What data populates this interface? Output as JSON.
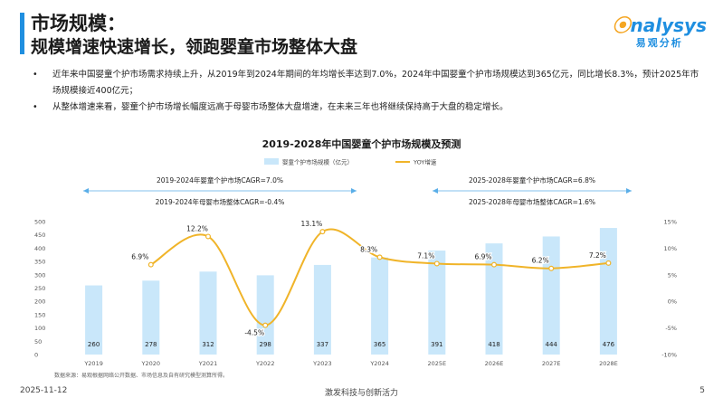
{
  "header": {
    "title_line1": "市场规模：",
    "title_line2": "规模增速快速增长，领跑婴童市场整体大盘",
    "logo_en": "nalysys",
    "logo_cn": "易观分析"
  },
  "bullets": [
    "近年来中国婴童个护市场需求持续上升，从2019年到2024年期间的年均增长率达到7.0%，2024年中国婴童个护市场规模达到365亿元，同比增长8.3%，预计2025年市场规模接近400亿元；",
    "从整体增速来看，婴童个护市场增长幅度远高于母婴市场整体大盘增速，在未来三年也将继续保持高于大盘的稳定增长。"
  ],
  "chart_data": {
    "type": "bar",
    "title": "2019-2028年中国婴童个护市场规模及预测",
    "categories": [
      "Y2019",
      "Y2020",
      "Y2021",
      "Y2022",
      "Y2023",
      "Y2024",
      "2025E",
      "2026E",
      "2027E",
      "2028E"
    ],
    "series": [
      {
        "name": "婴童个护市场规模（亿元）",
        "type": "bar",
        "axis": "left",
        "values": [
          260,
          278,
          312,
          298,
          337,
          365,
          391,
          418,
          444,
          476
        ],
        "labels": [
          "260",
          "278",
          "312",
          "298",
          "337",
          "365",
          "391",
          "418",
          "444",
          "476"
        ]
      },
      {
        "name": "YOY增速",
        "type": "line",
        "axis": "right",
        "values": [
          null,
          6.9,
          12.2,
          -4.5,
          13.1,
          8.3,
          7.1,
          6.9,
          6.2,
          7.2
        ],
        "labels": [
          "",
          "6.9%",
          "12.2%",
          "-4.5%",
          "13.1%",
          "8.3%",
          "7.1%",
          "6.9%",
          "6.2%",
          "7.2%"
        ]
      }
    ],
    "y_left": {
      "min": 0,
      "max": 500,
      "ticks": [
        "0",
        "50",
        "100",
        "150",
        "200",
        "250",
        "300",
        "350",
        "400",
        "450",
        "500"
      ]
    },
    "y_right": {
      "min": -10,
      "max": 15,
      "ticks": [
        "-10%",
        "-5%",
        "0%",
        "5%",
        "10%",
        "15%"
      ]
    },
    "legend_position": "top",
    "grid": false,
    "annotations": {
      "left_range": [
        "2019-2024年婴童个护市场CAGR=7.0%",
        "2019-2024年母婴市场整体CAGR=-0.4%"
      ],
      "right_range": [
        "2025-2028年婴童个护市场CAGR=6.8%",
        "2025-2028年母婴市场整体CAGR=1.6%"
      ]
    },
    "colors": {
      "bar": "#c9e7fa",
      "line": "#f0b429",
      "arrow": "#5aaee8"
    }
  },
  "source_note": "数据来源：易观根据网络公开数据、市场信息及自有研究模型测算所得。",
  "footer": {
    "date": "2025-11-12",
    "slogan": "激发科技与创新活力",
    "page": "5"
  }
}
